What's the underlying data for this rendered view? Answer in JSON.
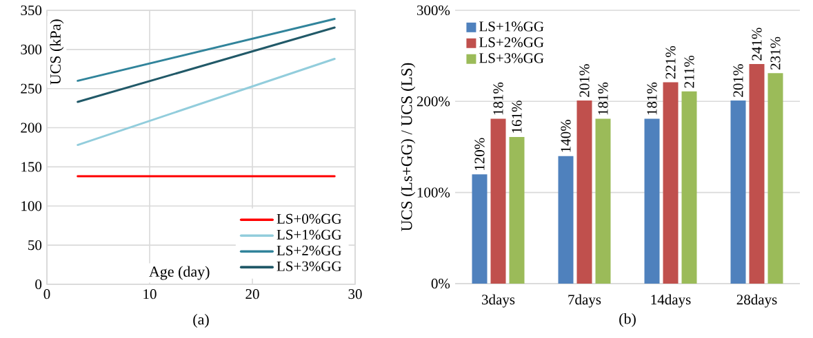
{
  "chart_data": [
    {
      "type": "line",
      "x": [
        3,
        28
      ],
      "xlabel": "Age (day)",
      "ylabel": "UCS (kPa)",
      "xlim": [
        0,
        30
      ],
      "xticks": [
        0,
        10,
        20,
        30
      ],
      "ylim": [
        0,
        350
      ],
      "yticks": [
        0,
        50,
        100,
        150,
        200,
        250,
        300,
        350
      ],
      "grid": true,
      "legend": "bottom right",
      "annotations": [
        "(a)"
      ],
      "series": [
        {
          "name": "LS+0%GG",
          "color": "#ff0000",
          "values": [
            138,
            138
          ]
        },
        {
          "name": "LS+1%GG",
          "color": "#92cddc",
          "values": [
            178,
            288
          ]
        },
        {
          "name": "LS+2%GG",
          "color": "#31849b",
          "values": [
            260,
            339
          ]
        },
        {
          "name": "LS+3%GG",
          "color": "#215968",
          "values": [
            233,
            328
          ]
        }
      ]
    },
    {
      "type": "bar",
      "categories": [
        "3days",
        "7days",
        "14days",
        "28days"
      ],
      "ylabel": "UCS (Ls+GG) / UCS (LS)",
      "ylim": [
        0,
        300
      ],
      "yticks": [
        {
          "value": 0,
          "label": "0%"
        },
        {
          "value": 100,
          "label": "100%"
        },
        {
          "value": 200,
          "label": "200%"
        },
        {
          "value": 300,
          "label": "300%"
        }
      ],
      "grid": "y",
      "legend": "top left",
      "annotations": [
        "(b)"
      ],
      "series": [
        {
          "name": "LS+1%GG",
          "color": "#4f81bd",
          "values": [
            120,
            140,
            181,
            201
          ],
          "value_labels": [
            "120%",
            "140%",
            "181%",
            "201%"
          ]
        },
        {
          "name": "LS+2%GG",
          "color": "#c0504d",
          "values": [
            181,
            201,
            221,
            241
          ],
          "value_labels": [
            "181%",
            "201%",
            "221%",
            "241%"
          ]
        },
        {
          "name": "LS+3%GG",
          "color": "#9bbb59",
          "values": [
            161,
            181,
            211,
            231
          ],
          "value_labels": [
            "161%",
            "181%",
            "211%",
            "231%"
          ]
        }
      ]
    }
  ]
}
